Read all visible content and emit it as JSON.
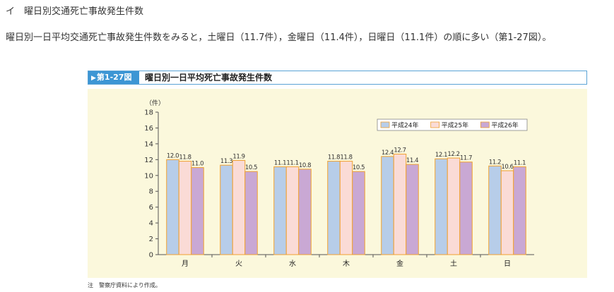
{
  "heading": "イ　曜日別交通死亡事故発生件数",
  "intro": "曜日別一日平均交通死亡事故発生件数をみると，土曜日（11.7件），金曜日（11.4件），日曜日（11.1件）の順に多い（第1-27図）。",
  "figure": {
    "label": "第1-27図",
    "title": "曜日別一日平均死亡事故発生件数"
  },
  "note": "注　警察庁資料により作成。",
  "colors": {
    "accent": "#3d96d4",
    "chart_bg": "#fbf8dc",
    "bar_border": "#f0a030"
  },
  "chart_data": {
    "type": "bar",
    "title": "曜日別一日平均死亡事故発生件数",
    "ylabel": "（件）",
    "xlabel": "",
    "ylim": [
      0,
      18
    ],
    "yticks": [
      0,
      2,
      4,
      6,
      8,
      10,
      12,
      14,
      16,
      18
    ],
    "grid": false,
    "legend_position": "top-right",
    "categories": [
      "月",
      "火",
      "水",
      "木",
      "金",
      "土",
      "日"
    ],
    "series": [
      {
        "name": "平成24年",
        "color": "#b7cde9",
        "values": [
          12.0,
          11.3,
          11.1,
          11.8,
          12.4,
          12.1,
          11.2
        ]
      },
      {
        "name": "平成25年",
        "color": "#fadbd6",
        "values": [
          11.8,
          11.9,
          11.1,
          11.8,
          12.7,
          12.2,
          10.6
        ]
      },
      {
        "name": "平成26年",
        "color": "#c9a8d4",
        "values": [
          11.0,
          10.5,
          10.8,
          10.5,
          11.4,
          11.7,
          11.1
        ]
      }
    ]
  }
}
